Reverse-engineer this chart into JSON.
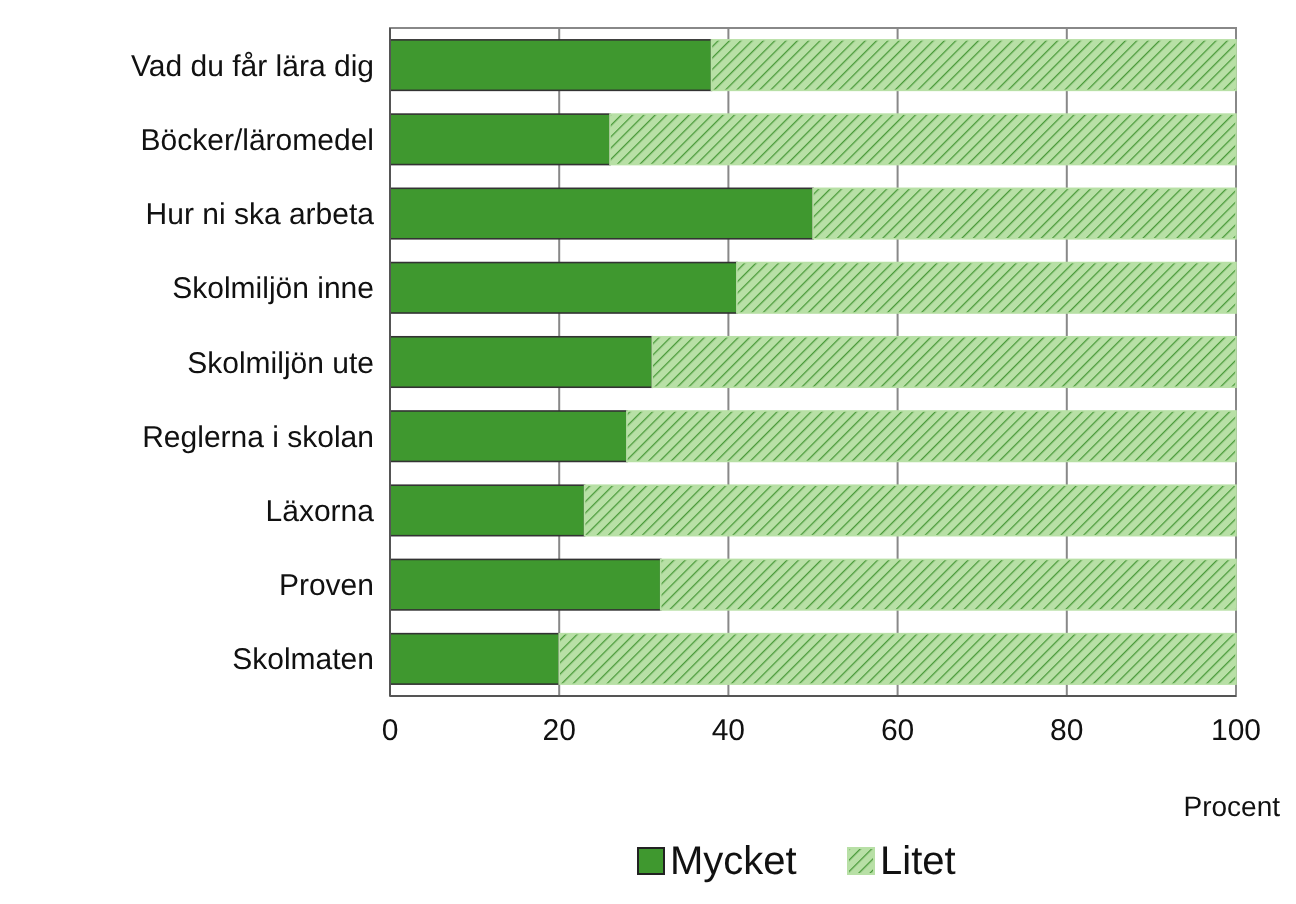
{
  "chart_data": {
    "type": "bar",
    "orientation": "horizontal",
    "stacked": true,
    "categories": [
      "Vad du får lära dig",
      "Böcker/läromedel",
      "Hur ni ska arbeta",
      "Skolmiljön inne",
      "Skolmiljön ute",
      "Reglerna i skolan",
      "Läxorna",
      "Proven",
      "Skolmaten"
    ],
    "series": [
      {
        "name": "Mycket",
        "color": "#3f982f",
        "values": [
          38,
          26,
          50,
          41,
          31,
          28,
          23,
          32,
          20
        ]
      },
      {
        "name": "Litet",
        "color": "#b8e0a6",
        "values": [
          62,
          74,
          50,
          59,
          69,
          72,
          77,
          68,
          80
        ]
      }
    ],
    "xlim": [
      0,
      100
    ],
    "xticks": [
      0,
      20,
      40,
      60,
      80,
      100
    ],
    "xlabel": "Procent",
    "grid": "x",
    "legend": "bottom"
  }
}
